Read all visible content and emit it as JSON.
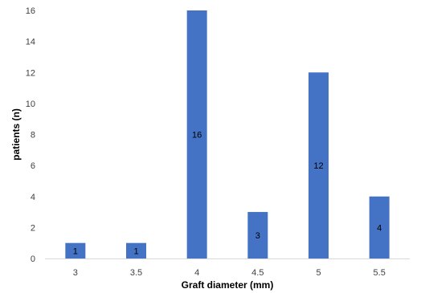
{
  "chart_data": {
    "type": "bar",
    "categories": [
      "3",
      "3.5",
      "4",
      "4.5",
      "5",
      "5.5"
    ],
    "values": [
      1,
      1,
      16,
      3,
      12,
      4
    ],
    "data_labels": [
      "1",
      "1",
      "16",
      "3",
      "12",
      "4"
    ],
    "title": "",
    "xlabel": "Graft diameter (mm)",
    "ylabel": "patients (n)",
    "ylim": [
      0,
      16
    ],
    "yticks": [
      0,
      2,
      4,
      6,
      8,
      10,
      12,
      14,
      16
    ],
    "bar_color": "#4472C4",
    "grid": false,
    "legend": "none"
  }
}
